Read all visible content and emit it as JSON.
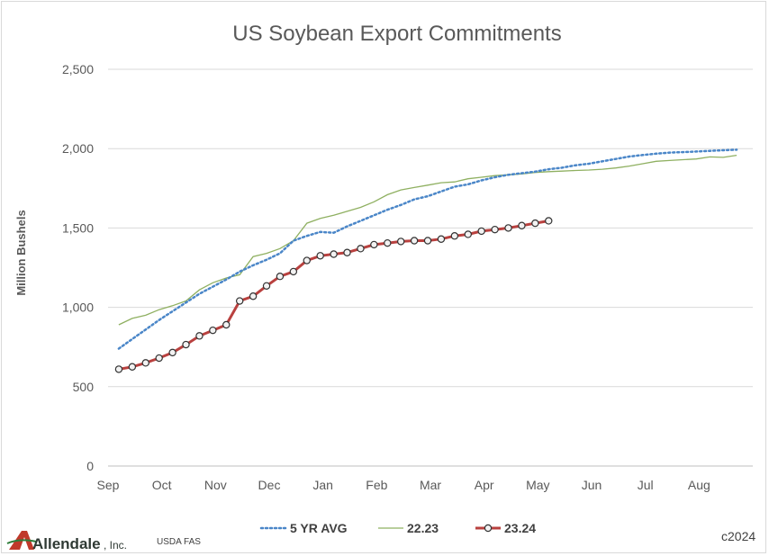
{
  "chart_data": {
    "type": "line",
    "title": "US Soybean Export Commitments",
    "xlabel": "",
    "ylabel": "Million Bushels",
    "ylim": [
      0,
      2500
    ],
    "yticks": [
      0,
      500,
      1000,
      1500,
      2000,
      2500
    ],
    "ytick_labels": [
      "0",
      "500",
      "1,000",
      "1,500",
      "2,000",
      "2,500"
    ],
    "xticks": [
      "Sep",
      "Oct",
      "Nov",
      "Dec",
      "Jan",
      "Feb",
      "Mar",
      "Apr",
      "May",
      "Jun",
      "Jul",
      "Aug"
    ],
    "grid": "horizontal",
    "legend_position": "bottom",
    "series": [
      {
        "name": "5 YR AVG",
        "color": "#4a86c8",
        "style": "dotted",
        "x": [
          0.2,
          0.45,
          0.7,
          0.95,
          1.2,
          1.45,
          1.7,
          1.95,
          2.2,
          2.45,
          2.7,
          2.95,
          3.2,
          3.45,
          3.7,
          3.95,
          4.2,
          4.45,
          4.7,
          4.95,
          5.2,
          5.45,
          5.7,
          5.95,
          6.2,
          6.45,
          6.7,
          6.95,
          7.2,
          7.45,
          7.7,
          7.95,
          8.2,
          8.45,
          8.7,
          8.95,
          9.2,
          9.45,
          9.7,
          9.95,
          10.2,
          10.45,
          10.7,
          10.95,
          11.2,
          11.45,
          11.7
        ],
        "values": [
          740,
          800,
          860,
          920,
          975,
          1030,
          1085,
          1130,
          1175,
          1225,
          1265,
          1300,
          1340,
          1420,
          1450,
          1475,
          1470,
          1510,
          1545,
          1580,
          1615,
          1645,
          1680,
          1700,
          1730,
          1760,
          1775,
          1800,
          1820,
          1835,
          1845,
          1855,
          1870,
          1880,
          1895,
          1905,
          1920,
          1935,
          1950,
          1960,
          1968,
          1975,
          1978,
          1982,
          1986,
          1990,
          1993
        ]
      },
      {
        "name": "22.23",
        "color": "#8fb061",
        "style": "solid",
        "x": [
          0.2,
          0.45,
          0.7,
          0.95,
          1.2,
          1.45,
          1.7,
          1.95,
          2.2,
          2.45,
          2.7,
          2.95,
          3.2,
          3.45,
          3.7,
          3.95,
          4.2,
          4.45,
          4.7,
          4.95,
          5.2,
          5.45,
          5.7,
          5.95,
          6.2,
          6.45,
          6.7,
          6.95,
          7.2,
          7.45,
          7.7,
          7.95,
          8.2,
          8.45,
          8.7,
          8.95,
          9.2,
          9.45,
          9.7,
          9.95,
          10.2,
          10.45,
          10.7,
          10.95,
          11.2,
          11.45,
          11.7
        ],
        "values": [
          890,
          930,
          950,
          985,
          1010,
          1040,
          1110,
          1155,
          1185,
          1205,
          1320,
          1340,
          1370,
          1420,
          1530,
          1560,
          1580,
          1605,
          1630,
          1665,
          1710,
          1740,
          1755,
          1770,
          1785,
          1790,
          1810,
          1820,
          1830,
          1835,
          1840,
          1850,
          1855,
          1858,
          1862,
          1865,
          1870,
          1878,
          1890,
          1905,
          1920,
          1925,
          1930,
          1935,
          1948,
          1945,
          1958
        ]
      },
      {
        "name": "23.24",
        "color": "#b9413f",
        "style": "solid-markers",
        "x": [
          0.2,
          0.45,
          0.7,
          0.95,
          1.2,
          1.45,
          1.7,
          1.95,
          2.2,
          2.45,
          2.7,
          2.95,
          3.2,
          3.45,
          3.7,
          3.95,
          4.2,
          4.45,
          4.7,
          4.95,
          5.2,
          5.45,
          5.7,
          5.95,
          6.2,
          6.45,
          6.7,
          6.95,
          7.2,
          7.45,
          7.7,
          7.95,
          8.2
        ],
        "values": [
          610,
          625,
          650,
          680,
          715,
          765,
          820,
          855,
          890,
          1040,
          1070,
          1135,
          1195,
          1225,
          1295,
          1325,
          1335,
          1345,
          1370,
          1395,
          1405,
          1415,
          1420,
          1420,
          1430,
          1450,
          1460,
          1480,
          1490,
          1500,
          1515,
          1530,
          1545
        ]
      }
    ]
  },
  "footer": {
    "logo_name": "Allendale",
    "logo_suffix": ", Inc.",
    "source": "USDA FAS",
    "copyright": "c2024"
  }
}
